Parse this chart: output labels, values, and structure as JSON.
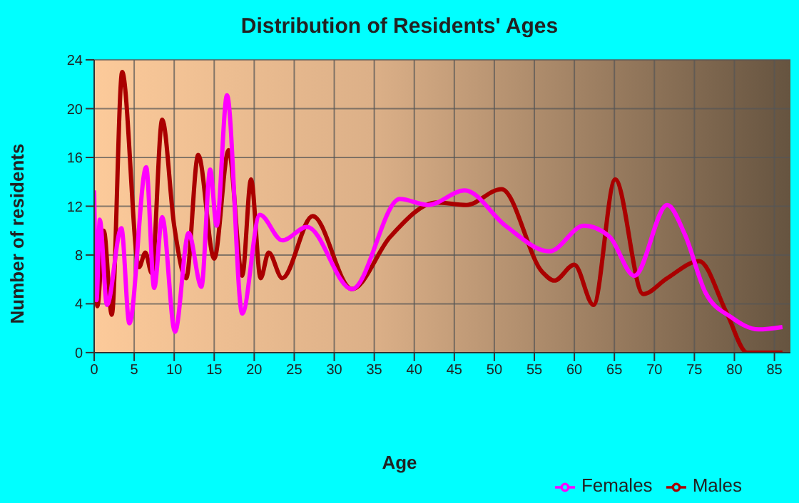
{
  "chart_data": {
    "type": "line",
    "title": "Distribution of Residents' Ages",
    "xlabel": "Age",
    "ylabel": "Number of residents",
    "xlim": [
      0,
      87
    ],
    "xticks": [
      0,
      5,
      10,
      15,
      20,
      25,
      30,
      35,
      40,
      45,
      50,
      55,
      60,
      65,
      70,
      75,
      80,
      85
    ],
    "ylim": [
      0,
      24
    ],
    "yticks": [
      0,
      4,
      8,
      12,
      16,
      20,
      24
    ],
    "grid": true,
    "legend": "bottom right",
    "marker": "none",
    "line_style": "solid",
    "series": [
      {
        "name": "Males",
        "color": "#aa0000",
        "x": [
          0,
          0.4,
          1.2,
          2.2,
          3.5,
          5.6,
          6.4,
          7.2,
          8.5,
          10,
          11.5,
          13,
          15,
          16.8,
          18.5,
          19.6,
          20.8,
          21.8,
          23.5,
          27.3,
          32.2,
          37,
          42.8,
          46.5,
          50.9,
          56,
          57.5,
          60,
          62.4,
          65.1,
          68.6,
          71.6,
          75.6,
          79,
          81.6,
          86
        ],
        "values": [
          10.2,
          3.8,
          10,
          3.1,
          23,
          7,
          8.2,
          6.5,
          19.1,
          10.4,
          6.1,
          16.2,
          7.7,
          16.6,
          6.3,
          14.2,
          6.1,
          8.2,
          6.1,
          11.2,
          5.2,
          9.5,
          12.3,
          12.1,
          13.4,
          6.6,
          5.9,
          7.2,
          3.9,
          14.2,
          4.8,
          6.1,
          7.5,
          3.3,
          0,
          0
        ]
      },
      {
        "name": "Females",
        "color": "#ff00ff",
        "x": [
          0,
          0.3,
          0.7,
          1.6,
          3.4,
          4.4,
          6.5,
          7.5,
          8.5,
          10.1,
          11.8,
          13.4,
          14.5,
          15.3,
          16.6,
          18.5,
          20.7,
          23.5,
          26.6,
          32.2,
          38.2,
          41.7,
          46.3,
          51.4,
          56.9,
          61.2,
          64.4,
          67.5,
          71.6,
          73.8,
          76.4,
          79.6,
          83,
          86
        ],
        "values": [
          13.3,
          4.3,
          10.9,
          3.9,
          10.2,
          2.4,
          15.2,
          5.3,
          11.1,
          1.7,
          9.8,
          5.4,
          15,
          10.4,
          21.1,
          3.2,
          11.3,
          9.2,
          10.3,
          5.2,
          12.6,
          12.1,
          13.3,
          10.4,
          8.3,
          10.4,
          9.5,
          6.3,
          12.1,
          9.7,
          4.9,
          2.9,
          1.9,
          2.1
        ]
      }
    ]
  }
}
